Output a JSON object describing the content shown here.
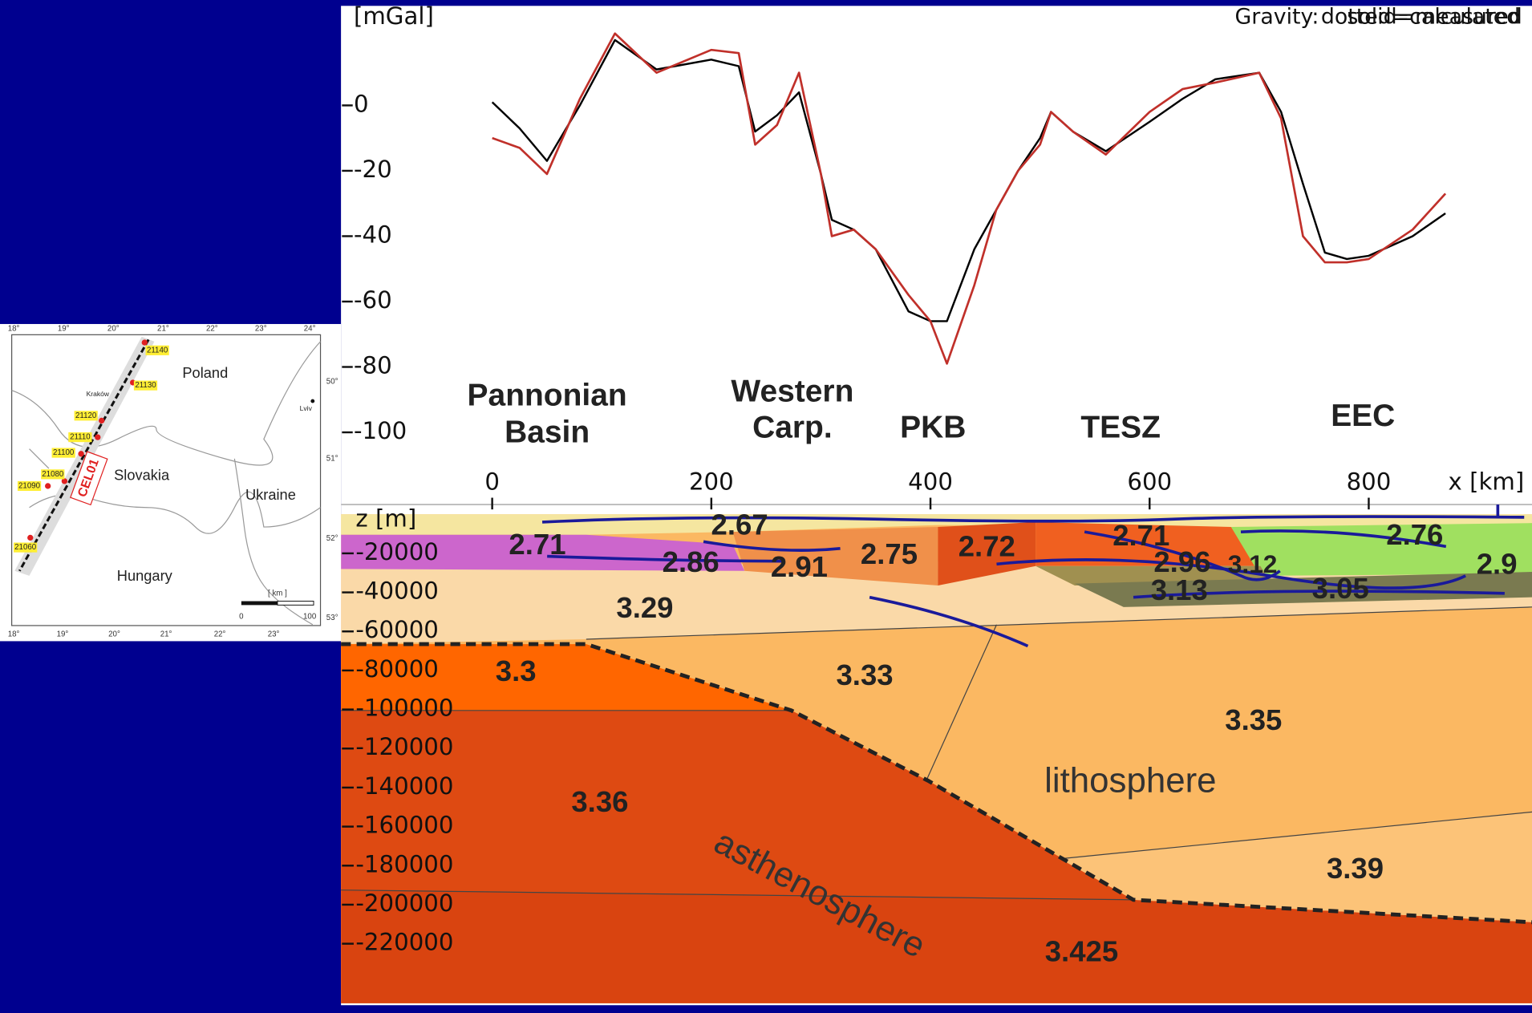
{
  "chart_data": [
    {
      "type": "line",
      "y_label": "[mGal]",
      "legend_title": "Gravity:",
      "x_label": "x [km]",
      "x": [
        0,
        25,
        50,
        80,
        112,
        150,
        200,
        225,
        240,
        260,
        280,
        300,
        310,
        330,
        350,
        380,
        400,
        415,
        440,
        460,
        480,
        500,
        510,
        530,
        560,
        600,
        630,
        660,
        700,
        720,
        740,
        760,
        780,
        800,
        840,
        870
      ],
      "series": [
        {
          "name": "dotted=calculated",
          "color": "#000000",
          "values": [
            1,
            -7,
            -17,
            0,
            20,
            11,
            14,
            12,
            -8,
            -3,
            4,
            -21,
            -35,
            -38,
            -44,
            -63,
            -66,
            -66,
            -44,
            -32,
            -20,
            -10,
            -2,
            -8,
            -14,
            -5,
            2,
            8,
            10,
            -2,
            -24,
            -45,
            -47,
            -46,
            -40,
            -33
          ]
        },
        {
          "name": "solid=measured",
          "color": "#c0302a",
          "values": [
            -10,
            -13,
            -21,
            2,
            22,
            10,
            17,
            16,
            -12,
            -6,
            10,
            -21,
            -40,
            -38,
            -44,
            -58,
            -66,
            -79,
            -55,
            -32,
            -20,
            -12,
            -2,
            -8,
            -15,
            -2,
            5,
            7,
            10,
            -4,
            -40,
            -48,
            -48,
            -47,
            -38,
            -27
          ]
        }
      ],
      "regions": [
        [
          "Pannonian",
          "Basin"
        ],
        [
          "Western",
          "Carp."
        ],
        [
          "PKB"
        ],
        [
          "TESZ"
        ],
        [
          "EEC"
        ]
      ],
      "xlim": [
        -138,
        949
      ],
      "xticks": [
        0,
        200,
        400,
        600,
        800
      ],
      "ylim": [
        -120,
        30
      ],
      "yticks": [
        0,
        -20,
        -40,
        -60,
        -80,
        -100
      ]
    },
    {
      "type": "section",
      "y_label": "z [m]",
      "ylim": [
        -250000,
        0
      ],
      "yticks": [
        -20000,
        -40000,
        -60000,
        -80000,
        -100000,
        -120000,
        -140000,
        -160000,
        -180000,
        -200000,
        -220000
      ],
      "densities": [
        "2.67",
        "2.71",
        "2.86",
        "2.91",
        "2.75",
        "2.72",
        "2.71",
        "2.96",
        "3.12",
        "3.13",
        "3.05",
        "2.76",
        "2.9",
        "3.29",
        "3.3",
        "3.33",
        "3.35",
        "3.36",
        "3.39",
        "3.425"
      ],
      "layers": [
        "lithosphere",
        "asthenosphere"
      ]
    }
  ],
  "map": {
    "countries": [
      "Poland",
      "Slovakia",
      "Ukraine",
      "Hungary"
    ],
    "cities": [
      "Kraków",
      "Lviv"
    ],
    "profile": "CEL01",
    "stations": [
      "21140",
      "21130",
      "21120",
      "21110",
      "21100",
      "21080",
      "21090",
      "21060"
    ],
    "lon_top": [
      "18°",
      "19°",
      "20°",
      "21°",
      "22°",
      "23°",
      "24°"
    ],
    "lon_bottom": [
      "18°",
      "19°",
      "20°",
      "21°",
      "22°",
      "23°"
    ],
    "lat_right": [
      "50°",
      "51°",
      "52°",
      "53°"
    ],
    "scale_unit": "[ km ]",
    "scale_ticks": [
      "0",
      "100"
    ]
  }
}
